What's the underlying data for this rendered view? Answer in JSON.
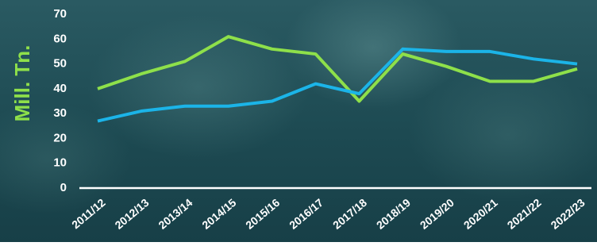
{
  "chart_data": {
    "type": "line",
    "y_label": "Mill. Tn.",
    "categories": [
      "2011/12",
      "2012/13",
      "2013/14",
      "2014/15",
      "2015/16",
      "2016/17",
      "2017/18",
      "2018/19",
      "2019/20",
      "2020/21",
      "2021/22",
      "2022/23"
    ],
    "series": [
      {
        "color": "#8ee04a",
        "values": [
          40,
          46,
          51,
          61,
          56,
          54,
          35,
          54,
          49,
          43,
          43,
          48
        ]
      },
      {
        "color": "#1bb4e8",
        "values": [
          27,
          31,
          33,
          33,
          35,
          42,
          38,
          56,
          55,
          55,
          52,
          50
        ]
      }
    ],
    "ylim": [
      0,
      70
    ],
    "yticks": [
      0,
      10,
      20,
      30,
      40,
      50,
      60,
      70
    ],
    "grid": false
  }
}
